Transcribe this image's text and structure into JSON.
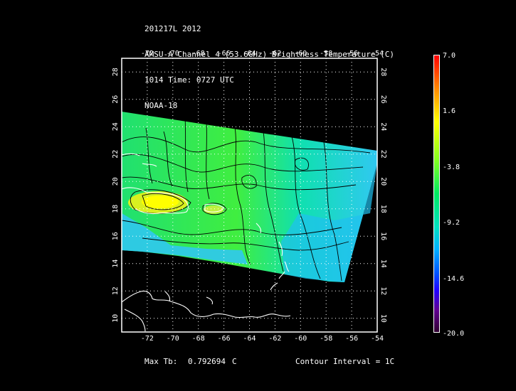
{
  "header": {
    "line1": "201217L 2012",
    "line2": "AMSU-A Channel 4 (53.6GHz) Brightness Temperature (C)",
    "line3": "1014 Time: 0727 UTC",
    "line4": "NOAA-18"
  },
  "map": {
    "lon_range": [
      -74,
      -54
    ],
    "lat_range": [
      9,
      29
    ],
    "lon_ticks": [
      "-72",
      "-70",
      "-68",
      "-66",
      "-64",
      "-62",
      "-60",
      "-58",
      "-56",
      "-54"
    ],
    "lat_ticks": [
      "10",
      "12",
      "14",
      "16",
      "18",
      "20",
      "22",
      "24",
      "26",
      "28"
    ],
    "grid": "dotted"
  },
  "colorbar": {
    "labels": [
      "7.0",
      "1.6",
      "-3.8",
      "-9.2",
      "-14.6",
      "-20.0"
    ],
    "min": -20.0,
    "max": 7.0,
    "colors": [
      "#ff0000",
      "#ff8800",
      "#ffff00",
      "#80ff20",
      "#00e860",
      "#00e0c0",
      "#00b0ff",
      "#0050ff",
      "#2000ff",
      "#600090",
      "#300030"
    ]
  },
  "footer": {
    "max_tb_label": "Max Tb:",
    "max_tb_value": "0.792694",
    "max_tb_unit": "C",
    "contour_interval": "Contour Interval = 1C"
  }
}
